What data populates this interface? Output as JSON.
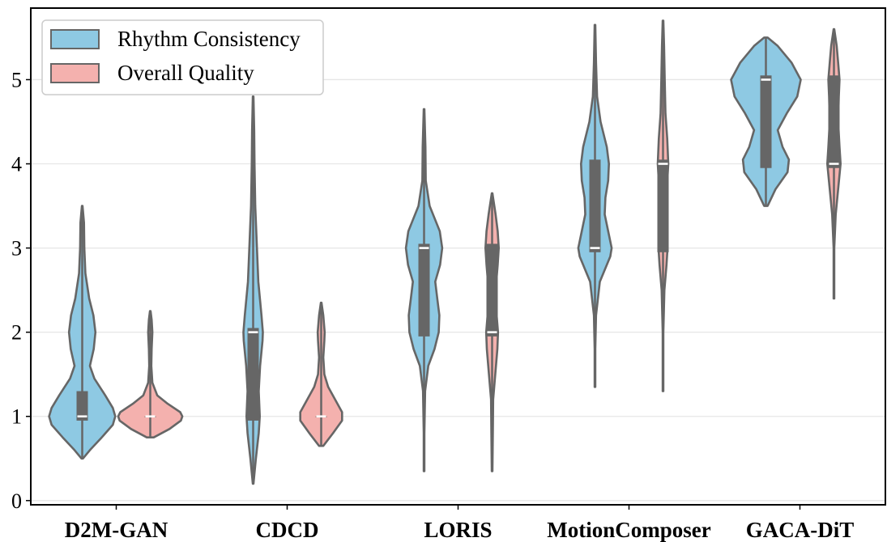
{
  "chart_data": {
    "type": "violin",
    "title": "",
    "xlabel": "",
    "ylabel": "",
    "ylim": [
      -0.05,
      5.85
    ],
    "yticks": [
      0,
      1,
      2,
      3,
      4,
      5
    ],
    "grid": "horizontal",
    "legend_position": "top-left",
    "categories": [
      "D2M-GAN",
      "CDCD",
      "LORIS",
      "MotionComposer",
      "GACA-DiT"
    ],
    "series": [
      {
        "name": "Rhythm Consistency",
        "color": "#8ec9e3",
        "violins": [
          {
            "min": 0.5,
            "max": 3.5,
            "q1": 0.95,
            "median": 1.0,
            "q3": 1.3,
            "profile": [
              [
                0.5,
                0.02
              ],
              [
                0.6,
                0.22
              ],
              [
                0.75,
                0.56
              ],
              [
                0.9,
                0.88
              ],
              [
                1.0,
                0.95
              ],
              [
                1.1,
                0.88
              ],
              [
                1.25,
                0.66
              ],
              [
                1.45,
                0.35
              ],
              [
                1.6,
                0.22
              ],
              [
                1.8,
                0.33
              ],
              [
                2.0,
                0.38
              ],
              [
                2.2,
                0.32
              ],
              [
                2.4,
                0.2
              ],
              [
                2.7,
                0.09
              ],
              [
                3.0,
                0.06
              ],
              [
                3.3,
                0.05
              ],
              [
                3.5,
                0.01
              ]
            ]
          },
          {
            "min": 0.2,
            "max": 4.8,
            "q1": 0.95,
            "median": 2.0,
            "q3": 2.05,
            "profile": [
              [
                0.2,
                0.01
              ],
              [
                0.5,
                0.08
              ],
              [
                0.8,
                0.16
              ],
              [
                1.0,
                0.19
              ],
              [
                1.3,
                0.16
              ],
              [
                1.6,
                0.2
              ],
              [
                1.9,
                0.27
              ],
              [
                2.0,
                0.28
              ],
              [
                2.2,
                0.24
              ],
              [
                2.6,
                0.15
              ],
              [
                3.0,
                0.11
              ],
              [
                3.5,
                0.06
              ],
              [
                4.0,
                0.04
              ],
              [
                4.4,
                0.03
              ],
              [
                4.8,
                0.01
              ]
            ]
          },
          {
            "min": 0.35,
            "max": 4.65,
            "q1": 1.95,
            "median": 3.0,
            "q3": 3.05,
            "profile": [
              [
                0.35,
                0.01
              ],
              [
                0.8,
                0.01
              ],
              [
                1.3,
                0.03
              ],
              [
                1.6,
                0.12
              ],
              [
                1.8,
                0.3
              ],
              [
                2.0,
                0.42
              ],
              [
                2.2,
                0.44
              ],
              [
                2.4,
                0.38
              ],
              [
                2.6,
                0.32
              ],
              [
                2.8,
                0.46
              ],
              [
                3.0,
                0.52
              ],
              [
                3.2,
                0.45
              ],
              [
                3.5,
                0.16
              ],
              [
                3.8,
                0.05
              ],
              [
                4.2,
                0.04
              ],
              [
                4.65,
                0.01
              ]
            ]
          },
          {
            "min": 1.35,
            "max": 5.65,
            "q1": 2.95,
            "median": 3.0,
            "q3": 4.05,
            "profile": [
              [
                1.35,
                0.01
              ],
              [
                1.8,
                0.01
              ],
              [
                2.2,
                0.03
              ],
              [
                2.6,
                0.14
              ],
              [
                2.9,
                0.44
              ],
              [
                3.0,
                0.48
              ],
              [
                3.2,
                0.38
              ],
              [
                3.4,
                0.28
              ],
              [
                3.6,
                0.3
              ],
              [
                3.8,
                0.38
              ],
              [
                4.0,
                0.4
              ],
              [
                4.2,
                0.34
              ],
              [
                4.5,
                0.16
              ],
              [
                4.8,
                0.06
              ],
              [
                5.2,
                0.03
              ],
              [
                5.65,
                0.01
              ]
            ]
          },
          {
            "min": 3.5,
            "max": 5.5,
            "q1": 3.95,
            "median": 5.0,
            "q3": 5.05,
            "profile": [
              [
                3.5,
                0.05
              ],
              [
                3.7,
                0.28
              ],
              [
                3.9,
                0.62
              ],
              [
                4.05,
                0.66
              ],
              [
                4.2,
                0.48
              ],
              [
                4.4,
                0.34
              ],
              [
                4.6,
                0.6
              ],
              [
                4.8,
                0.9
              ],
              [
                5.0,
                1.0
              ],
              [
                5.2,
                0.74
              ],
              [
                5.4,
                0.34
              ],
              [
                5.5,
                0.05
              ]
            ]
          }
        ]
      },
      {
        "name": "Overall Quality",
        "color": "#f4b1ae",
        "violins": [
          {
            "min": 0.75,
            "max": 2.25,
            "q1": 1.0,
            "median": 1.0,
            "q3": 1.0,
            "profile": [
              [
                0.75,
                0.1
              ],
              [
                0.85,
                0.55
              ],
              [
                0.95,
                0.88
              ],
              [
                1.0,
                0.92
              ],
              [
                1.05,
                0.86
              ],
              [
                1.15,
                0.5
              ],
              [
                1.25,
                0.2
              ],
              [
                1.4,
                0.06
              ],
              [
                1.6,
                0.03
              ],
              [
                1.8,
                0.04
              ],
              [
                2.0,
                0.06
              ],
              [
                2.15,
                0.04
              ],
              [
                2.25,
                0.01
              ]
            ]
          },
          {
            "min": 0.65,
            "max": 2.35,
            "q1": 1.0,
            "median": 1.0,
            "q3": 1.0,
            "profile": [
              [
                0.65,
                0.06
              ],
              [
                0.8,
                0.34
              ],
              [
                0.95,
                0.6
              ],
              [
                1.05,
                0.6
              ],
              [
                1.2,
                0.4
              ],
              [
                1.35,
                0.2
              ],
              [
                1.5,
                0.09
              ],
              [
                1.7,
                0.06
              ],
              [
                1.9,
                0.09
              ],
              [
                2.0,
                0.1
              ],
              [
                2.2,
                0.06
              ],
              [
                2.35,
                0.01
              ]
            ]
          },
          {
            "min": 0.35,
            "max": 3.65,
            "q1": 1.95,
            "median": 2.0,
            "q3": 3.05,
            "profile": [
              [
                0.35,
                0.01
              ],
              [
                0.8,
                0.02
              ],
              [
                1.2,
                0.03
              ],
              [
                1.5,
                0.09
              ],
              [
                1.8,
                0.15
              ],
              [
                2.0,
                0.17
              ],
              [
                2.2,
                0.13
              ],
              [
                2.5,
                0.1
              ],
              [
                2.8,
                0.16
              ],
              [
                3.0,
                0.19
              ],
              [
                3.2,
                0.16
              ],
              [
                3.4,
                0.1
              ],
              [
                3.65,
                0.01
              ]
            ]
          },
          {
            "min": 1.3,
            "max": 5.7,
            "q1": 2.95,
            "median": 4.0,
            "q3": 4.05,
            "profile": [
              [
                1.3,
                0.01
              ],
              [
                2.0,
                0.01
              ],
              [
                2.5,
                0.04
              ],
              [
                2.8,
                0.1
              ],
              [
                3.0,
                0.13
              ],
              [
                3.4,
                0.1
              ],
              [
                3.7,
                0.11
              ],
              [
                4.0,
                0.15
              ],
              [
                4.3,
                0.12
              ],
              [
                4.6,
                0.07
              ],
              [
                5.0,
                0.05
              ],
              [
                5.4,
                0.03
              ],
              [
                5.7,
                0.01
              ]
            ]
          },
          {
            "min": 2.4,
            "max": 5.6,
            "q1": 3.95,
            "median": 4.0,
            "q3": 5.05,
            "profile": [
              [
                2.4,
                0.01
              ],
              [
                3.0,
                0.01
              ],
              [
                3.4,
                0.05
              ],
              [
                3.7,
                0.12
              ],
              [
                4.0,
                0.19
              ],
              [
                4.2,
                0.16
              ],
              [
                4.5,
                0.12
              ],
              [
                4.8,
                0.14
              ],
              [
                5.0,
                0.16
              ],
              [
                5.2,
                0.12
              ],
              [
                5.4,
                0.08
              ],
              [
                5.6,
                0.01
              ]
            ]
          }
        ]
      }
    ]
  }
}
